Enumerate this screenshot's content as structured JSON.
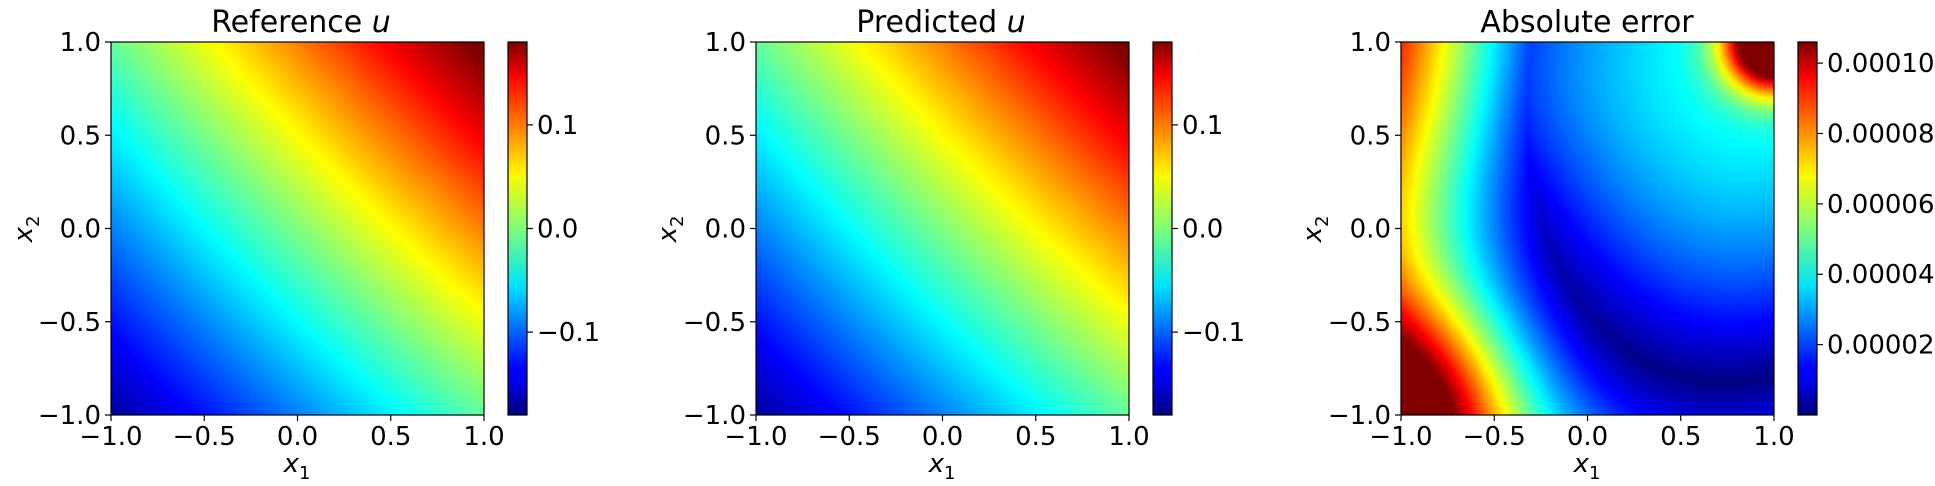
{
  "chart_data": [
    {
      "type": "heatmap",
      "id": "reference",
      "title": "Reference ",
      "title_var": "u",
      "xlabel": "x",
      "xlabel_sub": "1",
      "ylabel": "x",
      "ylabel_sub": "2",
      "xlim": [
        -1.0,
        1.0
      ],
      "ylim": [
        -1.0,
        1.0
      ],
      "xticks": [
        -1.0,
        -0.5,
        0.0,
        0.5,
        1.0
      ],
      "xtick_labels": [
        "−1.0",
        "−0.5",
        "0.0",
        "0.5",
        "1.0"
      ],
      "yticks": [
        -1.0,
        -0.5,
        0.0,
        0.5,
        1.0
      ],
      "ytick_labels": [
        "−1.0",
        "−0.5",
        "0.0",
        "0.5",
        "1.0"
      ],
      "field": "reference",
      "colormap": "jet",
      "vmin": -0.18,
      "vmax": 0.18,
      "colorbar_ticks": [
        -0.1,
        0.0,
        0.1
      ],
      "colorbar_tick_labels": [
        "−0.1",
        "0.0",
        "0.1"
      ]
    },
    {
      "type": "heatmap",
      "id": "predicted",
      "title": "Predicted ",
      "title_var": "u",
      "xlabel": "x",
      "xlabel_sub": "1",
      "ylabel": "x",
      "ylabel_sub": "2",
      "xlim": [
        -1.0,
        1.0
      ],
      "ylim": [
        -1.0,
        1.0
      ],
      "xticks": [
        -1.0,
        -0.5,
        0.0,
        0.5,
        1.0
      ],
      "xtick_labels": [
        "−1.0",
        "−0.5",
        "0.0",
        "0.5",
        "1.0"
      ],
      "yticks": [
        -1.0,
        -0.5,
        0.0,
        0.5,
        1.0
      ],
      "ytick_labels": [
        "−1.0",
        "−0.5",
        "0.0",
        "0.5",
        "1.0"
      ],
      "field": "predicted",
      "colormap": "jet",
      "vmin": -0.18,
      "vmax": 0.18,
      "colorbar_ticks": [
        -0.1,
        0.0,
        0.1
      ],
      "colorbar_tick_labels": [
        "−0.1",
        "0.0",
        "0.1"
      ]
    },
    {
      "type": "heatmap",
      "id": "error",
      "title": "Absolute error",
      "title_var": "",
      "xlabel": "x",
      "xlabel_sub": "1",
      "ylabel": "x",
      "ylabel_sub": "2",
      "xlim": [
        -1.0,
        1.0
      ],
      "ylim": [
        -1.0,
        1.0
      ],
      "xticks": [
        -1.0,
        -0.5,
        0.0,
        0.5,
        1.0
      ],
      "xtick_labels": [
        "−1.0",
        "−0.5",
        "0.0",
        "0.5",
        "1.0"
      ],
      "yticks": [
        -1.0,
        -0.5,
        0.0,
        0.5,
        1.0
      ],
      "ytick_labels": [
        "−1.0",
        "−0.5",
        "0.0",
        "0.5",
        "1.0"
      ],
      "field": "error",
      "colormap": "jet",
      "vmin": 0.0,
      "vmax": 0.000106,
      "colorbar_ticks": [
        2e-05,
        4e-05,
        6e-05,
        8e-05,
        0.0001
      ],
      "colorbar_tick_labels": [
        "0.00002",
        "0.00004",
        "0.00006",
        "0.00008",
        "0.00010"
      ]
    }
  ]
}
